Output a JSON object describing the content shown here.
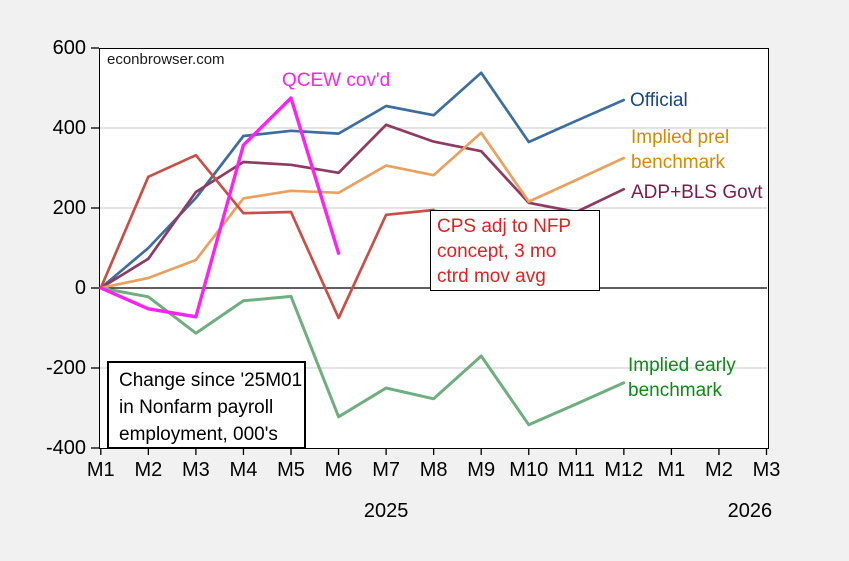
{
  "watermark": "econbrowser.com",
  "chart_data": {
    "type": "line",
    "title": "Change since '25M01 in Nonfarm payroll employment, 000's",
    "x_categories": [
      "M1",
      "M2",
      "M3",
      "M4",
      "M5",
      "M6",
      "M7",
      "M8",
      "M9",
      "M10",
      "M11",
      "M12",
      "M1",
      "M2",
      "M3"
    ],
    "year_labels": [
      {
        "text": "2025",
        "x_index": 6.0
      },
      {
        "text": "2026",
        "x_index": 13.65
      }
    ],
    "ylim": [
      -400,
      600
    ],
    "y_ticks": [
      600,
      400,
      200,
      0,
      -200,
      -400
    ],
    "gridlines": [
      400,
      200,
      -200
    ],
    "zero_line": true,
    "grid_color": "#c9c9c9",
    "series": [
      {
        "name": "Official",
        "color": "#3d6e9e",
        "width": 2.7,
        "values": [
          0,
          100,
          225,
          380,
          393,
          386,
          455,
          432,
          538,
          365,
          418,
          470,
          null,
          null,
          null
        ]
      },
      {
        "name": "ADP+BLS Govt",
        "color": "#8e3a62",
        "width": 2.7,
        "values": [
          0,
          73,
          240,
          315,
          308,
          288,
          408,
          366,
          342,
          213,
          190,
          247,
          null,
          null,
          null
        ]
      },
      {
        "name": "Implied prel benchmark",
        "color": "#e9a160",
        "width": 2.7,
        "values": [
          0,
          25,
          70,
          224,
          243,
          238,
          306,
          282,
          388,
          216,
          270,
          325,
          null,
          null,
          null
        ]
      },
      {
        "name": "CPS adj to NFP concept, 3 mo ctrd mov avg",
        "color": "#cb4e46",
        "width": 2.7,
        "values": [
          0,
          278,
          332,
          187,
          190,
          -75,
          183,
          195,
          null,
          null,
          null,
          null,
          null,
          null,
          null
        ]
      },
      {
        "name": "Implied early benchmark",
        "color": "#6fae7e",
        "width": 3.0,
        "values": [
          0,
          -22,
          -113,
          -32,
          -21,
          -322,
          -250,
          -277,
          -170,
          -342,
          -290,
          -237,
          null,
          null,
          null
        ]
      },
      {
        "name": "QCEW cov'd",
        "color": "#fb22f2",
        "width": 3.4,
        "values": [
          0,
          -52,
          -72,
          357,
          475,
          87,
          null,
          null,
          null,
          null,
          null,
          null,
          null,
          null,
          null
        ]
      }
    ],
    "labels": {
      "qcew": "QCEW cov'd",
      "official": "Official",
      "implied_prel": [
        "Implied prel",
        "benchmark"
      ],
      "adp": "ADP+BLS Govt",
      "cps": [
        "CPS adj to NFP",
        "concept, 3 mo",
        "ctrd mov avg"
      ],
      "early": [
        "Implied early",
        "benchmark"
      ],
      "note": [
        "Change since '25M01",
        "in Nonfarm payroll",
        "employment, 000's"
      ]
    }
  }
}
